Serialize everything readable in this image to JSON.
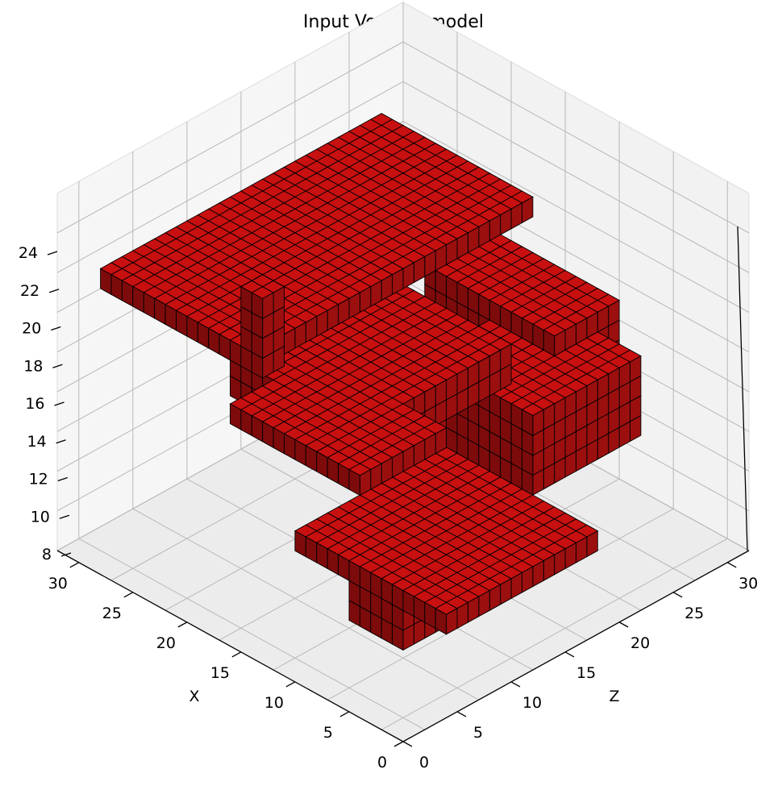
{
  "chart_data": {
    "type": "voxel3d",
    "title": "Input Voxels - model",
    "xlabel": "X",
    "ylabel": "",
    "zlabel": "Z",
    "xlim": [
      0,
      32
    ],
    "zlim": [
      0,
      32
    ],
    "ylim": [
      8,
      24
    ],
    "x_ticks": [
      "0",
      "5",
      "10",
      "15",
      "20",
      "25",
      "30"
    ],
    "z_ticks": [
      "0",
      "5",
      "10",
      "15",
      "20",
      "25",
      "30"
    ],
    "y_ticks": [
      "8",
      "10",
      "12",
      "14",
      "16",
      "18",
      "20",
      "22",
      "24"
    ],
    "grid": true,
    "voxel_color": "#c81010",
    "edge_color": "#000000",
    "blocks": [
      {
        "part": "lower-deck",
        "x": [
          16,
          30
        ],
        "z": [
          12,
          26
        ],
        "y": [
          11,
          12
        ]
      },
      {
        "part": "lower-pillar",
        "x": [
          21,
          26
        ],
        "z": [
          22,
          26
        ],
        "y": [
          9,
          11
        ]
      },
      {
        "part": "center-column",
        "x": [
          12,
          16
        ],
        "z": [
          12,
          16
        ],
        "y": [
          12,
          17
        ]
      },
      {
        "part": "middle-shelf",
        "x": [
          14,
          24
        ],
        "z": [
          2,
          12
        ],
        "y": [
          12,
          16
        ]
      },
      {
        "part": "right-wing",
        "x": [
          8,
          20
        ],
        "z": [
          0,
          6
        ],
        "y": [
          13,
          17
        ]
      },
      {
        "part": "upper-deck",
        "x": [
          10,
          22
        ],
        "z": [
          12,
          26
        ],
        "y": [
          17,
          19
        ]
      },
      {
        "part": "top-plate",
        "x": [
          0,
          14
        ],
        "z": [
          2,
          28
        ],
        "y": [
          20,
          21
        ]
      },
      {
        "part": "side-ledge",
        "x": [
          14,
          26
        ],
        "z": [
          22,
          30
        ],
        "y": [
          18,
          19
        ]
      },
      {
        "part": "tower",
        "x": [
          13,
          15
        ],
        "z": [
          26,
          28
        ],
        "y": [
          20,
          24
        ]
      },
      {
        "part": "right-post",
        "x": [
          2,
          4
        ],
        "z": [
          8,
          12
        ],
        "y": [
          17,
          20
        ]
      }
    ]
  }
}
